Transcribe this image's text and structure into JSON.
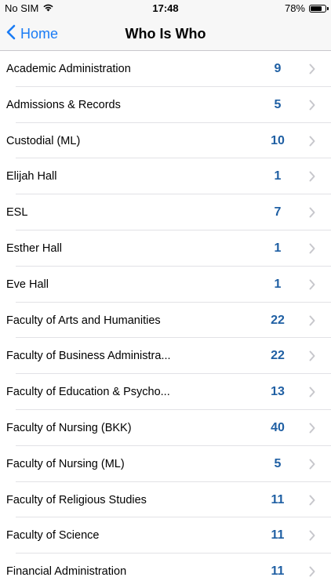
{
  "status_bar": {
    "carrier": "No SIM",
    "time": "17:48",
    "battery_percent_label": "78%",
    "battery_level": 0.78
  },
  "nav": {
    "back_label": "Home",
    "title": "Who Is Who"
  },
  "colors": {
    "accent": "#1a7cf5",
    "count": "#1f5fa3",
    "chevron": "#c7c7cc"
  },
  "departments": [
    {
      "name": "Academic Administration",
      "count": "9"
    },
    {
      "name": "Admissions & Records",
      "count": "5"
    },
    {
      "name": "Custodial (ML)",
      "count": "10"
    },
    {
      "name": "Elijah Hall",
      "count": "1"
    },
    {
      "name": "ESL",
      "count": "7"
    },
    {
      "name": "Esther Hall",
      "count": "1"
    },
    {
      "name": "Eve Hall",
      "count": "1"
    },
    {
      "name": "Faculty of Arts and Humanities",
      "count": "22"
    },
    {
      "name": "Faculty of Business Administra...",
      "count": "22"
    },
    {
      "name": "Faculty of Education & Psycho...",
      "count": "13"
    },
    {
      "name": "Faculty of Nursing (BKK)",
      "count": "40"
    },
    {
      "name": "Faculty of Nursing (ML)",
      "count": "5"
    },
    {
      "name": "Faculty of Religious Studies",
      "count": "11"
    },
    {
      "name": "Faculty of Science",
      "count": "11"
    },
    {
      "name": "Financial Administration",
      "count": "11"
    }
  ]
}
